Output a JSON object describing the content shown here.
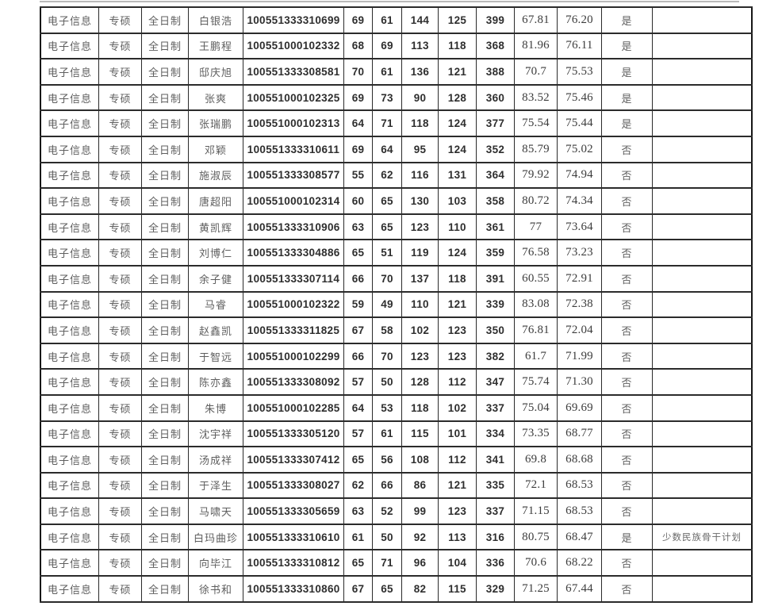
{
  "colors": {
    "bg": "#ffffff",
    "border": "#2b2b2b",
    "outer_border": "#161616",
    "cjk_text": "#5f5f5f",
    "num_text": "#2e2e2e",
    "dec_text": "#3c3c3c",
    "remark_text": "#6a6a6a",
    "cut_line": "#b9b9b9"
  },
  "table": {
    "columns": [
      {
        "field": "major",
        "style": "cjk c1"
      },
      {
        "field": "degree-type",
        "style": "cjk c2"
      },
      {
        "field": "study-mode",
        "style": "cjk c3"
      },
      {
        "field": "name",
        "style": "cjk c4"
      },
      {
        "field": "candidate-id",
        "style": "num c5"
      },
      {
        "field": "politics-score",
        "style": "num c6"
      },
      {
        "field": "foreign-language-score",
        "style": "num c7"
      },
      {
        "field": "subject1-score",
        "style": "num c8"
      },
      {
        "field": "subject2-score",
        "style": "num c9"
      },
      {
        "field": "initial-total",
        "style": "num c10"
      },
      {
        "field": "retest-score",
        "style": "dec c11"
      },
      {
        "field": "final-score",
        "style": "dec c12"
      },
      {
        "field": "admitted",
        "style": "cjk c13"
      },
      {
        "field": "remarks",
        "style": "cjk-small c14"
      }
    ],
    "rows": [
      [
        "电子信息",
        "专硕",
        "全日制",
        "白银浩",
        "100551333310699",
        "69",
        "61",
        "144",
        "125",
        "399",
        "67.81",
        "76.20",
        "是",
        ""
      ],
      [
        "电子信息",
        "专硕",
        "全日制",
        "王鹏程",
        "100551000102332",
        "68",
        "69",
        "113",
        "118",
        "368",
        "81.96",
        "76.11",
        "是",
        ""
      ],
      [
        "电子信息",
        "专硕",
        "全日制",
        "邸庆旭",
        "100551333308581",
        "70",
        "61",
        "136",
        "121",
        "388",
        "70.7",
        "75.53",
        "是",
        ""
      ],
      [
        "电子信息",
        "专硕",
        "全日制",
        "张爽",
        "100551000102325",
        "69",
        "73",
        "90",
        "128",
        "360",
        "83.52",
        "75.46",
        "是",
        ""
      ],
      [
        "电子信息",
        "专硕",
        "全日制",
        "张瑞鹏",
        "100551000102313",
        "64",
        "71",
        "118",
        "124",
        "377",
        "75.54",
        "75.44",
        "是",
        ""
      ],
      [
        "电子信息",
        "专硕",
        "全日制",
        "邓颖",
        "100551333310611",
        "69",
        "64",
        "95",
        "124",
        "352",
        "85.79",
        "75.02",
        "否",
        ""
      ],
      [
        "电子信息",
        "专硕",
        "全日制",
        "施淑辰",
        "100551333308577",
        "55",
        "62",
        "116",
        "131",
        "364",
        "79.92",
        "74.94",
        "否",
        ""
      ],
      [
        "电子信息",
        "专硕",
        "全日制",
        "唐超阳",
        "100551000102314",
        "60",
        "65",
        "130",
        "103",
        "358",
        "80.72",
        "74.34",
        "否",
        ""
      ],
      [
        "电子信息",
        "专硕",
        "全日制",
        "黄凯辉",
        "100551333310906",
        "63",
        "65",
        "123",
        "110",
        "361",
        "77",
        "73.64",
        "否",
        ""
      ],
      [
        "电子信息",
        "专硕",
        "全日制",
        "刘博仁",
        "100551333304886",
        "65",
        "51",
        "119",
        "124",
        "359",
        "76.58",
        "73.23",
        "否",
        ""
      ],
      [
        "电子信息",
        "专硕",
        "全日制",
        "余子健",
        "100551333307114",
        "66",
        "70",
        "137",
        "118",
        "391",
        "60.55",
        "72.91",
        "否",
        ""
      ],
      [
        "电子信息",
        "专硕",
        "全日制",
        "马睿",
        "100551000102322",
        "59",
        "49",
        "110",
        "121",
        "339",
        "83.08",
        "72.38",
        "否",
        ""
      ],
      [
        "电子信息",
        "专硕",
        "全日制",
        "赵鑫凯",
        "100551333311825",
        "67",
        "58",
        "102",
        "123",
        "350",
        "76.81",
        "72.04",
        "否",
        ""
      ],
      [
        "电子信息",
        "专硕",
        "全日制",
        "于智远",
        "100551000102299",
        "66",
        "70",
        "123",
        "123",
        "382",
        "61.7",
        "71.99",
        "否",
        ""
      ],
      [
        "电子信息",
        "专硕",
        "全日制",
        "陈亦鑫",
        "100551333308092",
        "57",
        "50",
        "128",
        "112",
        "347",
        "75.74",
        "71.30",
        "否",
        ""
      ],
      [
        "电子信息",
        "专硕",
        "全日制",
        "朱博",
        "100551000102285",
        "64",
        "53",
        "118",
        "102",
        "337",
        "75.04",
        "69.69",
        "否",
        ""
      ],
      [
        "电子信息",
        "专硕",
        "全日制",
        "沈宇祥",
        "100551333305120",
        "57",
        "61",
        "115",
        "101",
        "334",
        "73.35",
        "68.77",
        "否",
        ""
      ],
      [
        "电子信息",
        "专硕",
        "全日制",
        "汤成祥",
        "100551333307412",
        "65",
        "56",
        "108",
        "112",
        "341",
        "69.8",
        "68.68",
        "否",
        ""
      ],
      [
        "电子信息",
        "专硕",
        "全日制",
        "于泽生",
        "100551333308027",
        "62",
        "66",
        "86",
        "121",
        "335",
        "72.1",
        "68.53",
        "否",
        ""
      ],
      [
        "电子信息",
        "专硕",
        "全日制",
        "马啸天",
        "100551333305659",
        "63",
        "52",
        "99",
        "123",
        "337",
        "71.15",
        "68.53",
        "否",
        ""
      ],
      [
        "电子信息",
        "专硕",
        "全日制",
        "白玛曲珍",
        "100551333310610",
        "61",
        "50",
        "92",
        "113",
        "316",
        "80.75",
        "68.47",
        "是",
        "少数民族骨干计划"
      ],
      [
        "电子信息",
        "专硕",
        "全日制",
        "向毕江",
        "100551333310812",
        "65",
        "71",
        "96",
        "104",
        "336",
        "70.6",
        "68.22",
        "否",
        ""
      ],
      [
        "电子信息",
        "专硕",
        "全日制",
        "徐书和",
        "100551333310860",
        "67",
        "65",
        "82",
        "115",
        "329",
        "71.25",
        "67.44",
        "否",
        ""
      ]
    ]
  }
}
